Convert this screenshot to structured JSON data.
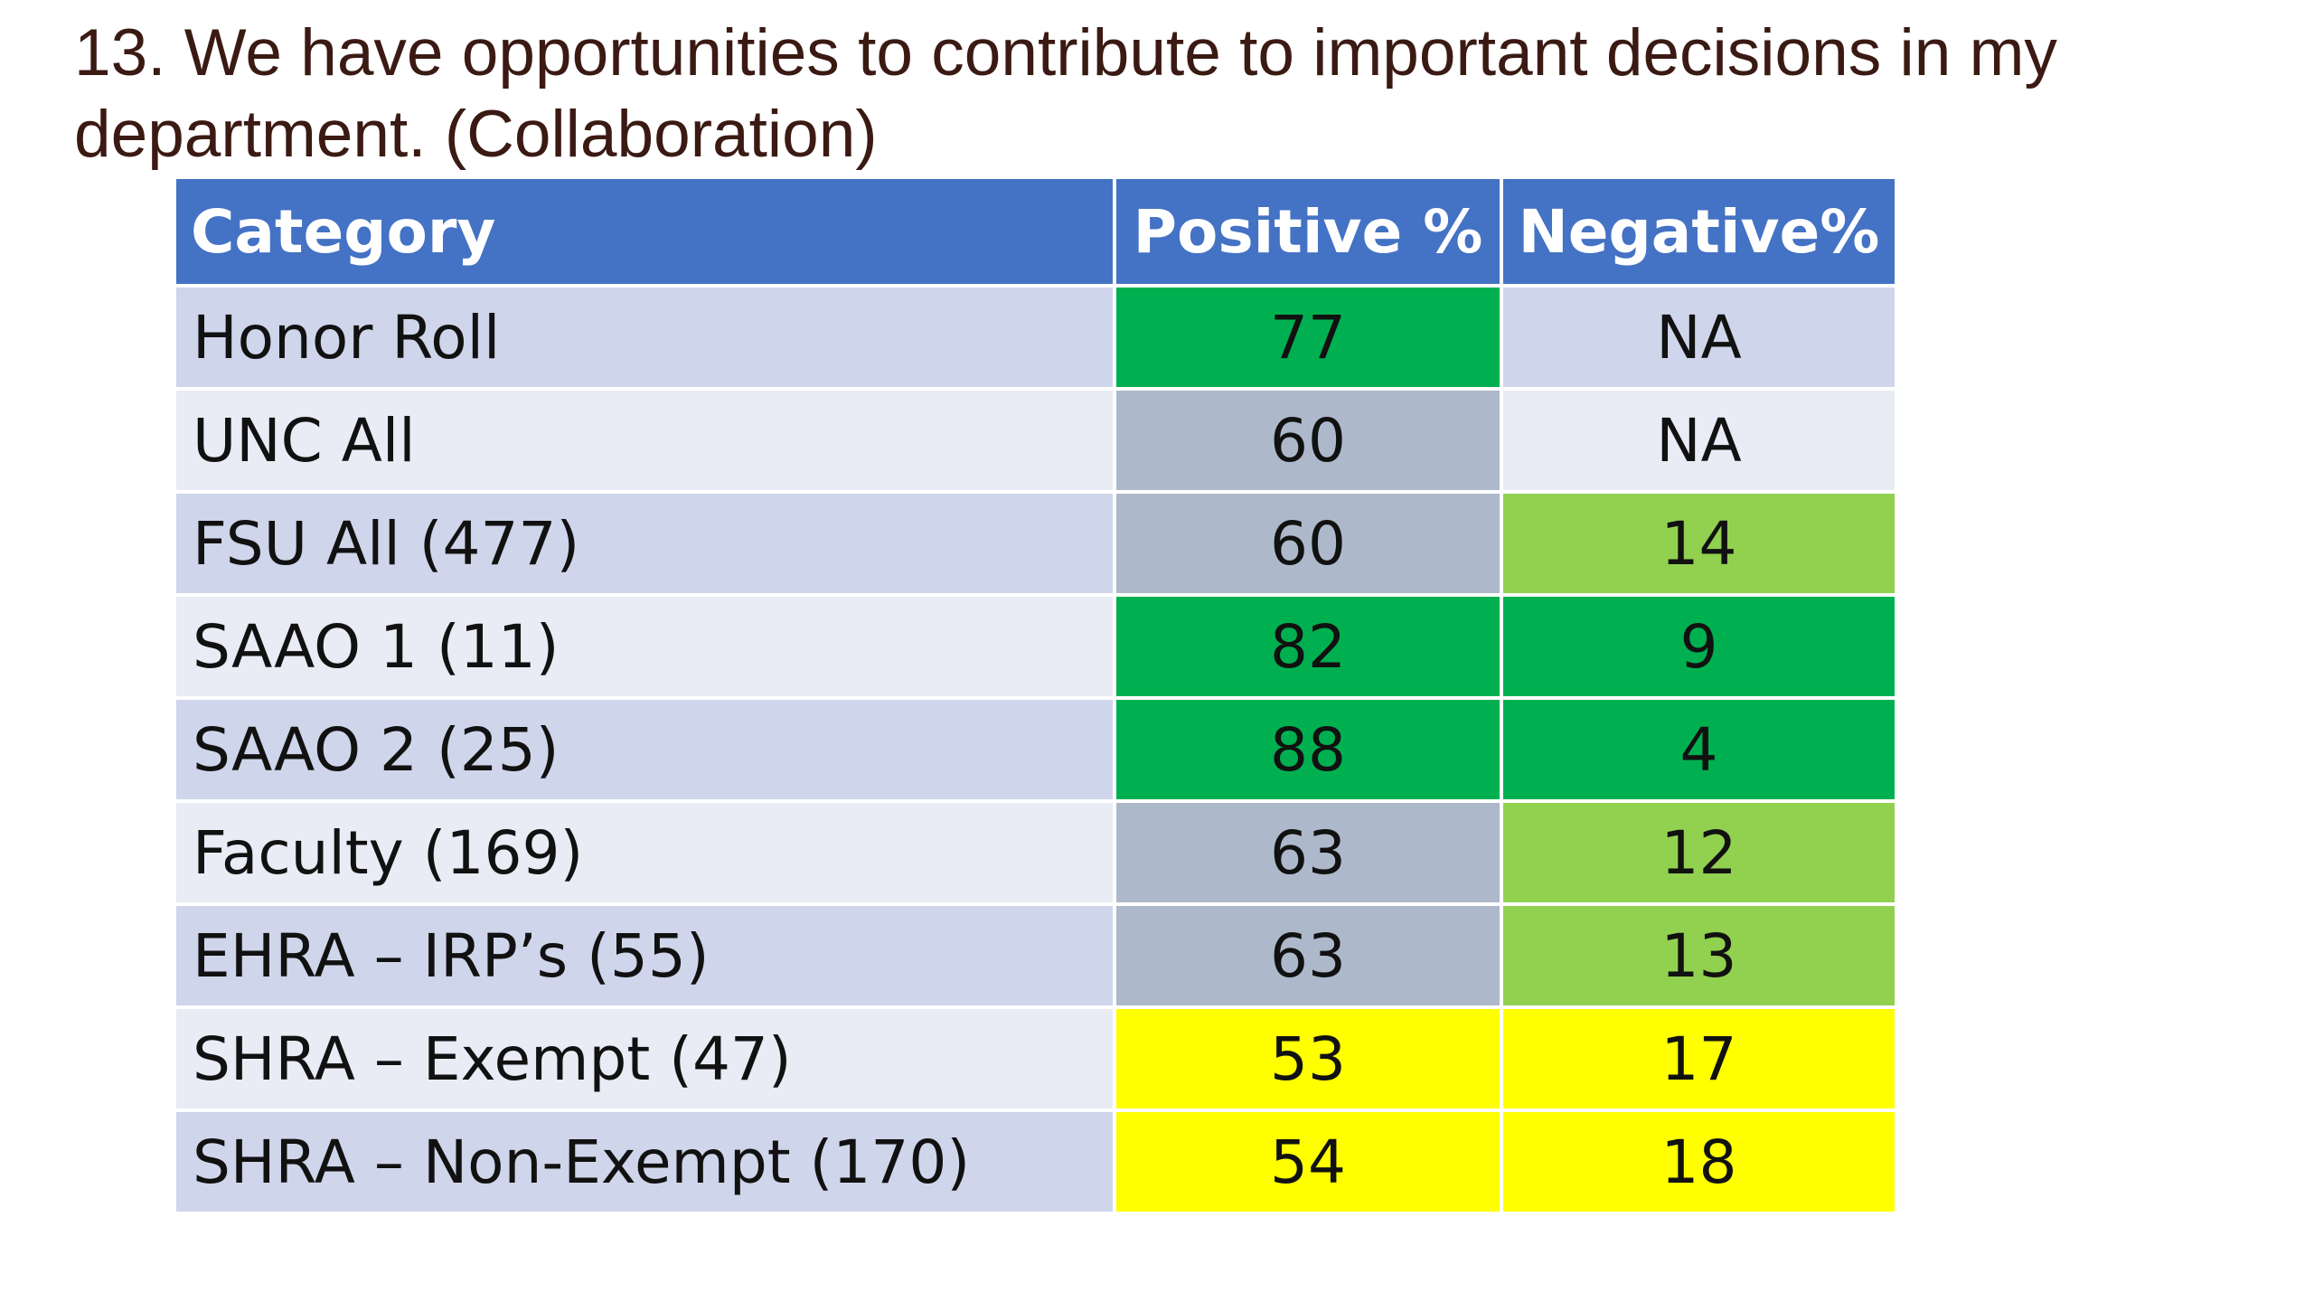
{
  "title": "13. We have opportunities to contribute to important decisions in my department. (Collaboration)",
  "table": {
    "headers": [
      "Category",
      "Positive %",
      "Negative%"
    ],
    "rows": [
      {
        "category": "Honor Roll",
        "positive": "77",
        "negative": "NA",
        "positive_color": "#00b050",
        "negative_color": "#cfd5ea"
      },
      {
        "category": "UNC All",
        "positive": "60",
        "negative": "NA",
        "positive_color": "#adb9ca",
        "negative_color": "#e9ebf5"
      },
      {
        "category": "FSU All (477)",
        "positive": "60",
        "negative": "14",
        "positive_color": "#adb9ca",
        "negative_color": "#92d050"
      },
      {
        "category": "SAAO 1 (11)",
        "positive": "82",
        "negative": "9",
        "positive_color": "#00b050",
        "negative_color": "#00b050"
      },
      {
        "category": "SAAO 2 (25)",
        "positive": "88",
        "negative": "4",
        "positive_color": "#00b050",
        "negative_color": "#00b050"
      },
      {
        "category": "Faculty (169)",
        "positive": "63",
        "negative": "12",
        "positive_color": "#adb9ca",
        "negative_color": "#92d050"
      },
      {
        "category": "EHRA – IRP’s (55)",
        "positive": "63",
        "negative": "13",
        "positive_color": "#adb9ca",
        "negative_color": "#92d050"
      },
      {
        "category": "SHRA – Exempt (47)",
        "positive": "53",
        "negative": "17",
        "positive_color": "#ffff00",
        "negative_color": "#ffff00"
      },
      {
        "category": "SHRA – Non-Exempt (170)",
        "positive": "54",
        "negative": "18",
        "positive_color": "#ffff00",
        "negative_color": "#ffff00"
      }
    ]
  },
  "colors": {
    "header_bg": "#4472c4",
    "row_band_dark": "#cfd5ea",
    "row_band_light": "#e9ebf5",
    "green_dark": "#00b050",
    "green_light": "#92d050",
    "gray": "#adb9ca",
    "yellow": "#ffff00",
    "title_text": "#3b1a14"
  }
}
